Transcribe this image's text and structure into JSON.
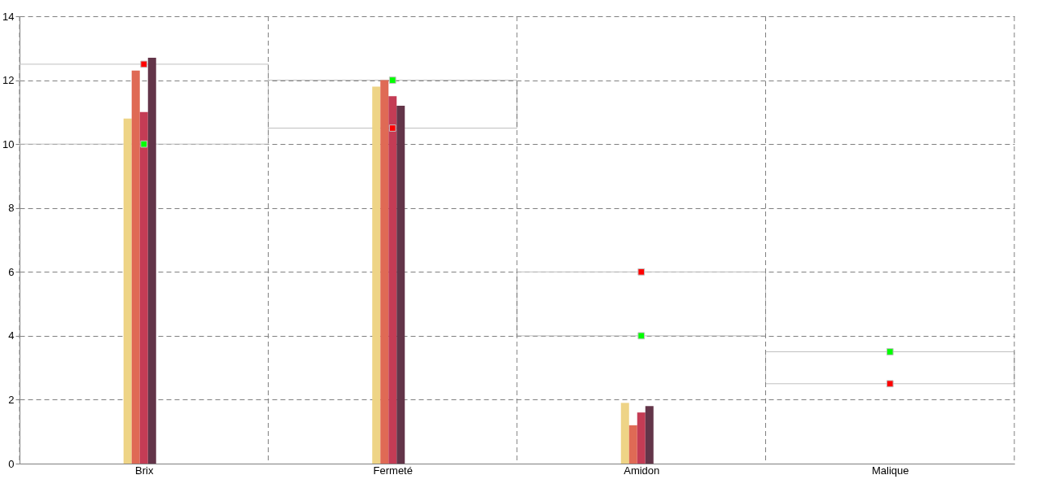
{
  "chart_data": {
    "type": "bar",
    "categories": [
      "Brix",
      "Fermeté",
      "Amidon",
      "Malique"
    ],
    "ylim": [
      0,
      14
    ],
    "yticks": [
      0,
      2,
      4,
      6,
      8,
      10,
      12,
      14
    ],
    "grid": true,
    "series": [
      {
        "type": "bar",
        "color": "#c0c0c0",
        "base": [
          10,
          10.5,
          4,
          2.5
        ],
        "values": [
          2.5,
          1.5,
          2,
          1
        ]
      },
      {
        "color": "#eed486",
        "values": [
          10.8,
          11.8,
          1.9,
          0
        ]
      },
      {
        "color": "#df6a55",
        "values": [
          12.3,
          12,
          1.2,
          0
        ]
      },
      {
        "color": "#c43c55",
        "values": [
          11,
          11.5,
          1.6,
          0
        ]
      },
      {
        "color": "#633549",
        "values": [
          12.7,
          11.2,
          1.8,
          0
        ]
      },
      {
        "color": "#4f9a94",
        "values": [
          0,
          0,
          0,
          0
        ]
      },
      {
        "type": "scatter",
        "color": "#ff0000",
        "marker": "square",
        "values": [
          12.5,
          10.5,
          6,
          2.5
        ]
      },
      {
        "type": "scatter",
        "color": "#00ff00",
        "marker": "square",
        "values": [
          10,
          12,
          4,
          3.5
        ]
      }
    ]
  }
}
